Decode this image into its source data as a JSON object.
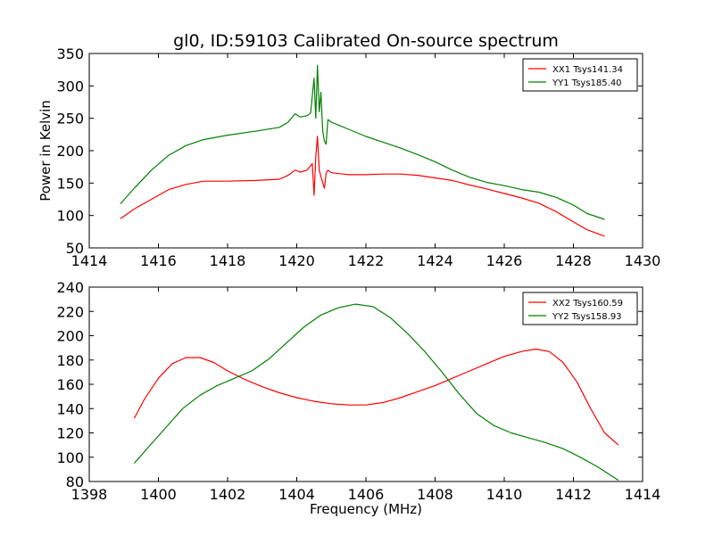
{
  "chart_data": [
    {
      "type": "line",
      "title": "gl0, ID:59103 Calibrated On-source spectrum",
      "xlabel": "",
      "ylabel": "Power in Kelvin",
      "xlim": [
        1414,
        1430
      ],
      "ylim": [
        50,
        350
      ],
      "xticks": [
        1414,
        1416,
        1418,
        1420,
        1422,
        1424,
        1426,
        1428,
        1430
      ],
      "yticks": [
        50,
        100,
        150,
        200,
        250,
        300,
        350
      ],
      "legend": "top-right",
      "series": [
        {
          "name": "XX1 Tsys141.34",
          "color": "#ff0000",
          "x": [
            1414.9,
            1415.3,
            1415.8,
            1416.3,
            1416.8,
            1417.3,
            1418.0,
            1418.8,
            1419.5,
            1419.75,
            1419.95,
            1420.1,
            1420.3,
            1420.45,
            1420.5,
            1420.55,
            1420.6,
            1420.65,
            1420.7,
            1420.8,
            1420.85,
            1420.9,
            1421.0,
            1421.5,
            1422.0,
            1422.5,
            1423.0,
            1423.5,
            1424.0,
            1424.5,
            1425.0,
            1425.5,
            1426.0,
            1426.5,
            1427.0,
            1427.5,
            1428.0,
            1428.4,
            1428.9
          ],
          "y": [
            95,
            110,
            125,
            140,
            148,
            153,
            153,
            154,
            156,
            162,
            170,
            167,
            170,
            180,
            131,
            190,
            222,
            170,
            160,
            142,
            165,
            170,
            166,
            163,
            163,
            164,
            164,
            162,
            158,
            154,
            147,
            141,
            134,
            127,
            119,
            106,
            90,
            78,
            68
          ]
        },
        {
          "name": "YY1 Tsys185.40",
          "color": "#008000",
          "x": [
            1414.9,
            1415.3,
            1415.8,
            1416.3,
            1416.8,
            1417.3,
            1418.0,
            1418.8,
            1419.5,
            1419.75,
            1419.95,
            1420.1,
            1420.3,
            1420.4,
            1420.5,
            1420.55,
            1420.6,
            1420.65,
            1420.7,
            1420.75,
            1420.8,
            1420.85,
            1420.9,
            1421.0,
            1421.5,
            1422.0,
            1422.5,
            1423.0,
            1423.5,
            1424.0,
            1424.5,
            1425.0,
            1425.5,
            1426.0,
            1426.5,
            1427.0,
            1427.5,
            1428.0,
            1428.4,
            1428.9
          ],
          "y": [
            118,
            142,
            170,
            193,
            208,
            217,
            224,
            230,
            236,
            244,
            257,
            252,
            254,
            258,
            312,
            250,
            332,
            260,
            290,
            230,
            215,
            210,
            248,
            244,
            233,
            222,
            213,
            204,
            194,
            183,
            170,
            159,
            151,
            146,
            140,
            136,
            128,
            116,
            103,
            94
          ]
        }
      ]
    },
    {
      "type": "line",
      "title": "",
      "xlabel": "Frequency (MHz)",
      "ylabel": "",
      "xlim": [
        1398,
        1414
      ],
      "ylim": [
        80,
        240
      ],
      "xticks": [
        1398,
        1400,
        1402,
        1404,
        1406,
        1408,
        1410,
        1412,
        1414
      ],
      "yticks": [
        80,
        100,
        120,
        140,
        160,
        180,
        200,
        220,
        240
      ],
      "legend": "top-right",
      "series": [
        {
          "name": "XX2 Tsys160.59",
          "color": "#ff0000",
          "x": [
            1399.3,
            1399.6,
            1400.0,
            1400.4,
            1400.8,
            1401.2,
            1401.6,
            1402.0,
            1402.5,
            1403.0,
            1403.5,
            1404.0,
            1404.5,
            1405.0,
            1405.5,
            1406.0,
            1406.5,
            1407.0,
            1407.5,
            1408.0,
            1408.5,
            1409.0,
            1409.5,
            1410.0,
            1410.5,
            1410.9,
            1411.3,
            1411.7,
            1412.1,
            1412.5,
            1412.9,
            1413.3
          ],
          "y": [
            132,
            148,
            165,
            177,
            182,
            182,
            178,
            171,
            164,
            158,
            153,
            149,
            146,
            144,
            143,
            143,
            145,
            149,
            154,
            159,
            165,
            171,
            177,
            183,
            187,
            189,
            187,
            178,
            162,
            140,
            120,
            110
          ]
        },
        {
          "name": "YY2 Tsys158.93",
          "color": "#008000",
          "x": [
            1399.3,
            1399.7,
            1400.2,
            1400.7,
            1401.2,
            1401.7,
            1402.2,
            1402.7,
            1403.2,
            1403.7,
            1404.2,
            1404.7,
            1405.2,
            1405.7,
            1406.2,
            1406.7,
            1407.2,
            1407.7,
            1408.2,
            1408.7,
            1409.2,
            1409.7,
            1410.2,
            1410.7,
            1411.2,
            1411.7,
            1412.2,
            1412.7,
            1413.3
          ],
          "y": [
            95,
            108,
            124,
            140,
            151,
            159,
            165,
            171,
            181,
            194,
            207,
            217,
            223,
            226,
            224,
            215,
            202,
            187,
            170,
            152,
            136,
            126,
            120,
            116,
            112,
            107,
            100,
            92,
            81
          ]
        }
      ]
    }
  ]
}
